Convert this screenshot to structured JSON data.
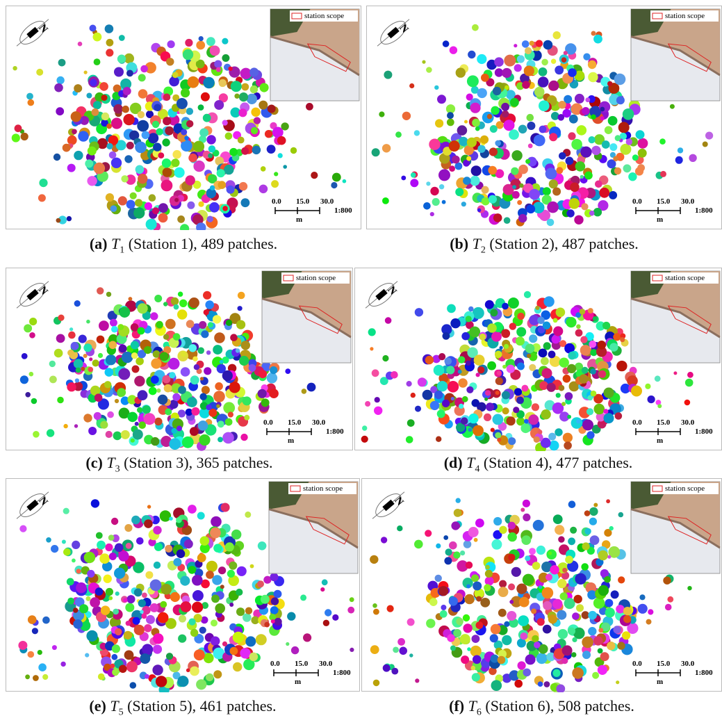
{
  "panels": [
    {
      "north": "N",
      "legend": "station scope",
      "scale": {
        "ticks": [
          "0.0",
          "15.0",
          "30.0"
        ],
        "unit": "m",
        "ratio": "1:800"
      },
      "caption": {
        "label": "(a)",
        "symbol": "T",
        "subscript": "1",
        "text": "(Station 1), 489 patches."
      }
    },
    {
      "north": "N",
      "legend": "station scope",
      "scale": {
        "ticks": [
          "0.0",
          "15.0",
          "30.0"
        ],
        "unit": "m",
        "ratio": "1:800"
      },
      "caption": {
        "label": "(b)",
        "symbol": "T",
        "subscript": "2",
        "text": "(Station 2), 487 patches."
      }
    },
    {
      "north": "N",
      "legend": "station scope",
      "scale": {
        "ticks": [
          "0.0",
          "15.0",
          "30.0"
        ],
        "unit": "m",
        "ratio": "1:800"
      },
      "caption": {
        "label": "(c)",
        "symbol": "T",
        "subscript": "3",
        "text": "(Station 3), 365 patches."
      }
    },
    {
      "north": "N",
      "legend": "station scope",
      "scale": {
        "ticks": [
          "0.0",
          "15.0",
          "30.0"
        ],
        "unit": "m",
        "ratio": "1:800"
      },
      "caption": {
        "label": "(d)",
        "symbol": "T",
        "subscript": "4",
        "text": "(Station 4), 477 patches."
      }
    },
    {
      "north": "N",
      "legend": "station scope",
      "scale": {
        "ticks": [
          "0.0",
          "15.0",
          "30.0"
        ],
        "unit": "m",
        "ratio": "1:800"
      },
      "caption": {
        "label": "(e)",
        "symbol": "T",
        "subscript": "5",
        "text": "(Station 5), 461 patches."
      }
    },
    {
      "north": "N",
      "legend": "station scope",
      "scale": {
        "ticks": [
          "0.0",
          "15.0",
          "30.0"
        ],
        "unit": "m",
        "ratio": "1:800"
      },
      "caption": {
        "label": "(f)",
        "symbol": "T",
        "subscript": "6",
        "text": "(Station 6), 508 patches."
      }
    }
  ]
}
